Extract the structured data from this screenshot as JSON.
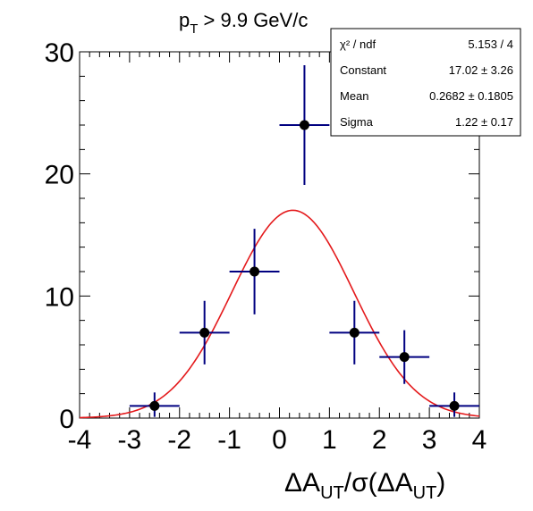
{
  "chart_data": {
    "type": "scatter",
    "title_main": "p",
    "title_sub": "T",
    "title_rest": " > 9.9 GeV/c",
    "xlabel_parts": [
      "ΔA",
      "UT",
      "/σ(ΔA",
      "UT",
      ")"
    ],
    "ylabel": "",
    "xlim": [
      -4,
      4
    ],
    "ylim": [
      0,
      30
    ],
    "x_ticks": [
      "-4",
      "-3",
      "-2",
      "-1",
      "0",
      "1",
      "2",
      "3",
      "4"
    ],
    "y_ticks": [
      "0",
      "10",
      "20",
      "30"
    ],
    "points": [
      {
        "x": -2.5,
        "y": 1,
        "xerr": 0.5,
        "yerr_lo": 0.9,
        "yerr_hi": 1.1
      },
      {
        "x": -1.5,
        "y": 7,
        "xerr": 0.5,
        "yerr_lo": 2.6,
        "yerr_hi": 2.6
      },
      {
        "x": -0.5,
        "y": 12,
        "xerr": 0.5,
        "yerr_lo": 3.5,
        "yerr_hi": 3.5
      },
      {
        "x": 0.5,
        "y": 24,
        "xerr": 0.5,
        "yerr_lo": 4.9,
        "yerr_hi": 4.9
      },
      {
        "x": 1.5,
        "y": 7,
        "xerr": 0.5,
        "yerr_lo": 2.6,
        "yerr_hi": 2.6
      },
      {
        "x": 2.5,
        "y": 5,
        "xerr": 0.5,
        "yerr_lo": 2.2,
        "yerr_hi": 2.2
      },
      {
        "x": 3.5,
        "y": 1,
        "xerr": 0.5,
        "yerr_lo": 0.9,
        "yerr_hi": 1.1
      }
    ],
    "fit": {
      "constant": 17.02,
      "mean": 0.2682,
      "sigma": 1.22
    },
    "stats_box": {
      "rows": [
        {
          "label": "χ² / ndf",
          "value": "5.153 / 4"
        },
        {
          "label": "Constant",
          "value": "17.02 ± 3.26"
        },
        {
          "label": "Mean",
          "value": "0.2682 ± 0.1805"
        },
        {
          "label": "Sigma",
          "value": "1.22 ± 0.17"
        }
      ]
    },
    "colors": {
      "points": "#000000",
      "errors": "#000080",
      "fit": "#e41a1c"
    }
  }
}
